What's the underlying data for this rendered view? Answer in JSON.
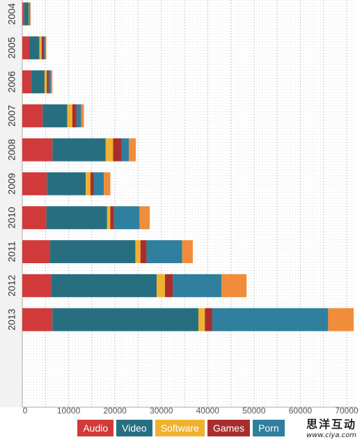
{
  "chart_data": {
    "type": "bar",
    "orientation": "horizontal",
    "stacked": true,
    "categories": [
      "2004",
      "2005",
      "2006",
      "2007",
      "2008",
      "2009",
      "2010",
      "2011",
      "2012",
      "2013"
    ],
    "series": [
      {
        "name": "Audio",
        "color": "#d13a3a",
        "values": [
          400,
          1500,
          1900,
          4400,
          6500,
          5300,
          5200,
          6000,
          6200,
          6500
        ]
      },
      {
        "name": "Video",
        "color": "#276f80",
        "values": [
          1000,
          2200,
          2900,
          5300,
          11500,
          8400,
          13100,
          18400,
          22800,
          31500
        ]
      },
      {
        "name": "Software",
        "color": "#f0b22e",
        "values": [
          100,
          500,
          500,
          1100,
          1600,
          1000,
          700,
          1100,
          1800,
          1400
        ]
      },
      {
        "name": "Games",
        "color": "#a82e2e",
        "values": [
          100,
          500,
          400,
          900,
          1800,
          700,
          800,
          1300,
          1700,
          1600
        ]
      },
      {
        "name": "Porn",
        "color": "#2f7f9e",
        "values": [
          100,
          300,
          500,
          1000,
          1600,
          2200,
          5500,
          7700,
          10500,
          25000
        ]
      },
      {
        "name": "",
        "color": "#f08c3a",
        "values": [
          100,
          200,
          300,
          600,
          1500,
          1400,
          2200,
          2300,
          5400,
          5500
        ]
      }
    ],
    "xlim": [
      0,
      73000
    ],
    "ticks": [
      "0",
      "10000",
      "20000",
      "30000",
      "40000",
      "50000",
      "60000",
      "70000"
    ],
    "tick_values": [
      0,
      10000,
      20000,
      30000,
      40000,
      50000,
      60000,
      70000
    ],
    "grid": true,
    "legend_position": "bottom-center"
  },
  "legend": [
    {
      "label": "Audio",
      "color": "#d13a3a"
    },
    {
      "label": "Video",
      "color": "#276f80"
    },
    {
      "label": "Software",
      "color": "#f0b22e"
    },
    {
      "label": "Games",
      "color": "#a82e2e"
    },
    {
      "label": "Porn",
      "color": "#2f7f9e"
    }
  ],
  "watermark": {
    "title": "思洋互动",
    "url": "www.ciya.com"
  }
}
